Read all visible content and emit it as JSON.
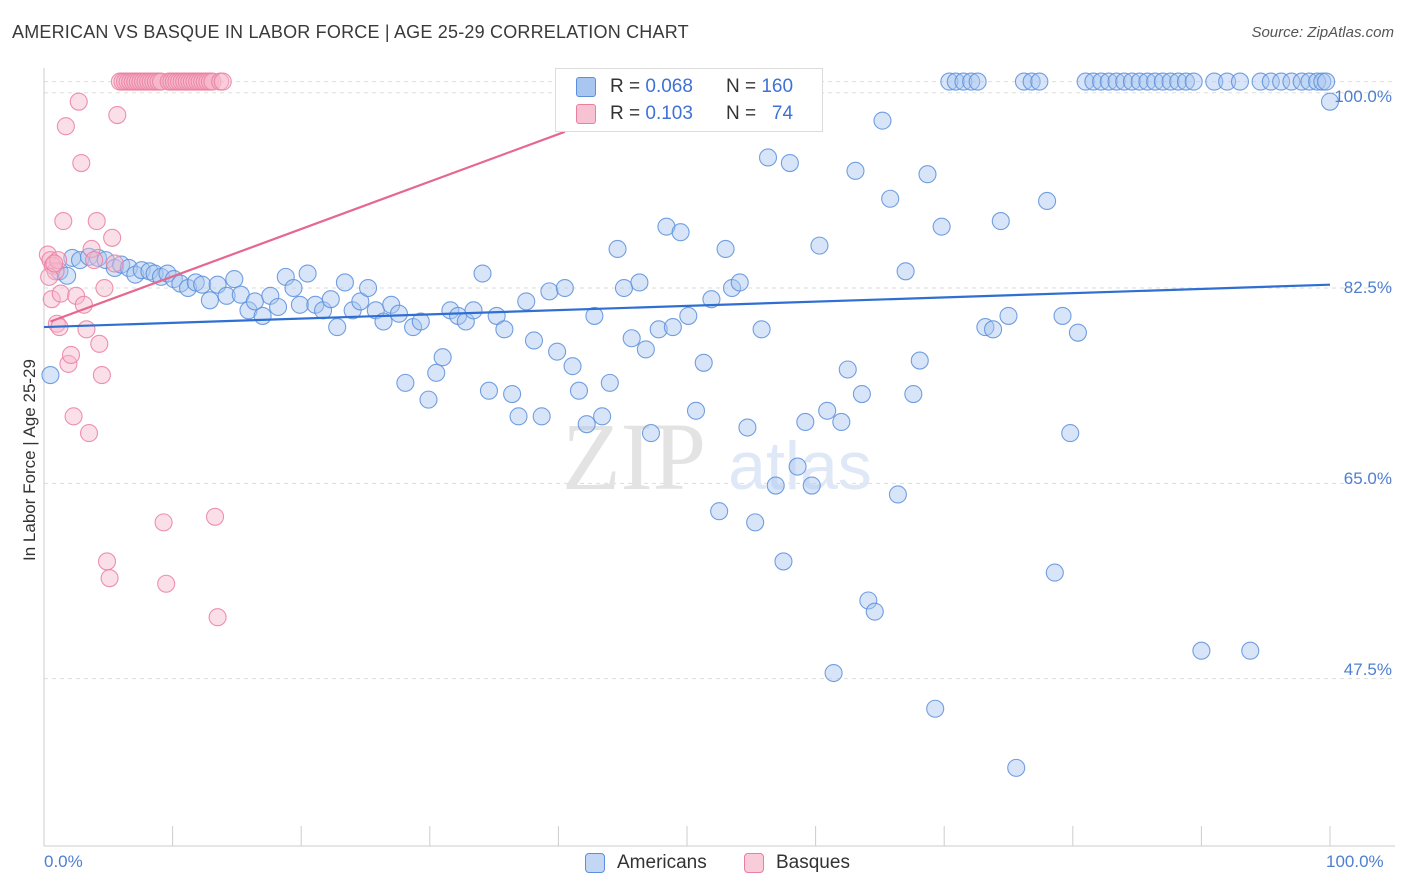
{
  "header": {
    "title": "AMERICAN VS BASQUE IN LABOR FORCE | AGE 25-29 CORRELATION CHART",
    "source": "Source: ZipAtlas.com"
  },
  "legend": {
    "americans": {
      "r_label": "R =",
      "r_value": "0.068",
      "n_label": "N =",
      "n_value": "160"
    },
    "basques": {
      "r_label": "R =",
      "r_value": "0.103",
      "n_label": "N =",
      "n_value": "74"
    }
  },
  "watermark": {
    "zip": "ZIP",
    "atlas": "atlas"
  },
  "colors": {
    "americans_fill": "#a9c6f0",
    "americans_stroke": "#5b8fdc",
    "americans_line": "#2f6fd1",
    "basques_fill": "#f7b7cb",
    "basques_stroke": "#ea7fa1",
    "basques_line": "#e5688f",
    "tick_text": "#4f7fd0",
    "grid": "#dddddd"
  },
  "chart_data": {
    "type": "scatter",
    "title": "AMERICAN VS BASQUE IN LABOR FORCE | AGE 25-29 CORRELATION CHART",
    "xlabel": "",
    "ylabel": "In Labor Force | Age 25-29",
    "xlim": [
      0,
      100
    ],
    "ylim": [
      32.5,
      101.5
    ],
    "x_tick_labels": [
      "0.0%",
      "100.0%"
    ],
    "y_ticks": [
      47.5,
      65.0,
      82.5,
      100.0
    ],
    "y_tick_labels": [
      "47.5%",
      "65.0%",
      "82.5%",
      "100.0%"
    ],
    "grid": true,
    "legend_position": "top-center",
    "series": [
      {
        "name": "Americans",
        "trend": [
          [
            0,
            79.0
          ],
          [
            100,
            82.8
          ]
        ],
        "points": [
          [
            0.5,
            74.7
          ],
          [
            1.2,
            84.0
          ],
          [
            1.8,
            83.6
          ],
          [
            2.2,
            85.2
          ],
          [
            2.8,
            85.0
          ],
          [
            3.5,
            85.3
          ],
          [
            4.2,
            85.2
          ],
          [
            4.8,
            85.0
          ],
          [
            5.5,
            84.3
          ],
          [
            6.0,
            84.6
          ],
          [
            6.6,
            84.3
          ],
          [
            7.1,
            83.7
          ],
          [
            7.6,
            84.1
          ],
          [
            8.2,
            84.0
          ],
          [
            8.6,
            83.8
          ],
          [
            9.1,
            83.5
          ],
          [
            9.6,
            83.8
          ],
          [
            10.1,
            83.3
          ],
          [
            10.6,
            82.9
          ],
          [
            11.2,
            82.5
          ],
          [
            11.8,
            83.0
          ],
          [
            12.3,
            82.8
          ],
          [
            12.9,
            81.4
          ],
          [
            13.5,
            82.8
          ],
          [
            14.2,
            81.8
          ],
          [
            14.8,
            83.3
          ],
          [
            15.3,
            81.9
          ],
          [
            15.9,
            80.5
          ],
          [
            16.4,
            81.3
          ],
          [
            17.0,
            80.0
          ],
          [
            17.6,
            81.8
          ],
          [
            18.2,
            80.8
          ],
          [
            18.8,
            83.5
          ],
          [
            19.4,
            82.5
          ],
          [
            19.9,
            81.0
          ],
          [
            20.5,
            83.8
          ],
          [
            21.1,
            81.0
          ],
          [
            21.7,
            80.5
          ],
          [
            22.3,
            81.5
          ],
          [
            22.8,
            79.0
          ],
          [
            23.4,
            83.0
          ],
          [
            24.0,
            80.5
          ],
          [
            24.6,
            81.3
          ],
          [
            25.2,
            82.5
          ],
          [
            25.8,
            80.5
          ],
          [
            26.4,
            79.5
          ],
          [
            27.0,
            81.0
          ],
          [
            27.6,
            80.2
          ],
          [
            28.1,
            74.0
          ],
          [
            28.7,
            79.0
          ],
          [
            29.3,
            79.5
          ],
          [
            29.9,
            72.5
          ],
          [
            30.5,
            74.9
          ],
          [
            31.0,
            76.3
          ],
          [
            31.6,
            80.5
          ],
          [
            32.2,
            80.0
          ],
          [
            32.8,
            79.5
          ],
          [
            33.4,
            80.5
          ],
          [
            34.1,
            83.8
          ],
          [
            34.6,
            73.3
          ],
          [
            35.2,
            80.0
          ],
          [
            35.8,
            78.8
          ],
          [
            36.4,
            73.0
          ],
          [
            36.9,
            71.0
          ],
          [
            37.5,
            81.3
          ],
          [
            38.1,
            77.8
          ],
          [
            38.7,
            71.0
          ],
          [
            39.3,
            82.2
          ],
          [
            39.9,
            76.8
          ],
          [
            40.5,
            82.5
          ],
          [
            41.1,
            75.5
          ],
          [
            41.6,
            73.3
          ],
          [
            42.2,
            70.3
          ],
          [
            42.8,
            80.0
          ],
          [
            43.4,
            71.0
          ],
          [
            44.0,
            74.0
          ],
          [
            44.6,
            86.0
          ],
          [
            45.1,
            82.5
          ],
          [
            45.7,
            78.0
          ],
          [
            46.3,
            83.0
          ],
          [
            46.8,
            77.0
          ],
          [
            47.2,
            69.5
          ],
          [
            47.8,
            78.8
          ],
          [
            48.4,
            88.0
          ],
          [
            48.9,
            79.0
          ],
          [
            49.5,
            87.5
          ],
          [
            50.1,
            80.0
          ],
          [
            50.7,
            71.5
          ],
          [
            51.3,
            75.8
          ],
          [
            51.9,
            81.5
          ],
          [
            52.5,
            62.5
          ],
          [
            53.0,
            86.0
          ],
          [
            53.5,
            82.5
          ],
          [
            54.1,
            83.0
          ],
          [
            54.7,
            70.0
          ],
          [
            55.3,
            61.5
          ],
          [
            55.8,
            78.8
          ],
          [
            56.3,
            94.2
          ],
          [
            56.9,
            64.8
          ],
          [
            57.5,
            58.0
          ],
          [
            58.0,
            93.7
          ],
          [
            58.6,
            66.5
          ],
          [
            59.2,
            70.5
          ],
          [
            59.7,
            64.8
          ],
          [
            60.3,
            86.3
          ],
          [
            60.9,
            71.5
          ],
          [
            61.4,
            48.0
          ],
          [
            62.0,
            70.5
          ],
          [
            62.5,
            75.2
          ],
          [
            63.1,
            93.0
          ],
          [
            63.6,
            73.0
          ],
          [
            64.1,
            54.5
          ],
          [
            64.6,
            53.5
          ],
          [
            65.2,
            97.5
          ],
          [
            65.8,
            90.5
          ],
          [
            66.4,
            64.0
          ],
          [
            67.0,
            84.0
          ],
          [
            67.6,
            73.0
          ],
          [
            68.1,
            76.0
          ],
          [
            68.7,
            92.7
          ],
          [
            69.3,
            44.8
          ],
          [
            69.8,
            88.0
          ],
          [
            70.4,
            101.0
          ],
          [
            70.9,
            101.0
          ],
          [
            71.5,
            101.0
          ],
          [
            72.1,
            101.0
          ],
          [
            72.6,
            101.0
          ],
          [
            73.2,
            79.0
          ],
          [
            73.8,
            78.8
          ],
          [
            74.4,
            88.5
          ],
          [
            75.0,
            80.0
          ],
          [
            75.6,
            39.5
          ],
          [
            76.2,
            101.0
          ],
          [
            76.8,
            101.0
          ],
          [
            77.4,
            101.0
          ],
          [
            78.0,
            90.3
          ],
          [
            78.6,
            57.0
          ],
          [
            79.2,
            80.0
          ],
          [
            79.8,
            69.5
          ],
          [
            80.4,
            78.5
          ],
          [
            81.0,
            101.0
          ],
          [
            81.6,
            101.0
          ],
          [
            82.2,
            101.0
          ],
          [
            82.8,
            101.0
          ],
          [
            83.4,
            101.0
          ],
          [
            84.0,
            101.0
          ],
          [
            84.6,
            101.0
          ],
          [
            85.2,
            101.0
          ],
          [
            85.8,
            101.0
          ],
          [
            86.4,
            101.0
          ],
          [
            87.0,
            101.0
          ],
          [
            87.6,
            101.0
          ],
          [
            88.2,
            101.0
          ],
          [
            88.8,
            101.0
          ],
          [
            89.4,
            101.0
          ],
          [
            90.0,
            50.0
          ],
          [
            91.0,
            101.0
          ],
          [
            92.0,
            101.0
          ],
          [
            93.0,
            101.0
          ],
          [
            93.8,
            50.0
          ],
          [
            94.6,
            101.0
          ],
          [
            95.4,
            101.0
          ],
          [
            96.2,
            101.0
          ],
          [
            97.0,
            101.0
          ],
          [
            97.8,
            101.0
          ],
          [
            98.4,
            101.0
          ],
          [
            99.0,
            101.0
          ],
          [
            99.4,
            101.0
          ],
          [
            99.7,
            101.0
          ],
          [
            100.0,
            99.2
          ]
        ]
      },
      {
        "name": "Basques",
        "trend": [
          [
            0.5,
            79.5
          ],
          [
            40.5,
            96.5
          ]
        ],
        "points": [
          [
            0.3,
            85.5
          ],
          [
            0.5,
            85.0
          ],
          [
            0.7,
            84.5
          ],
          [
            0.9,
            84.0
          ],
          [
            1.1,
            85.0
          ],
          [
            0.4,
            83.5
          ],
          [
            0.6,
            81.5
          ],
          [
            0.8,
            84.7
          ],
          [
            1.0,
            79.3
          ],
          [
            1.2,
            79.0
          ],
          [
            1.3,
            82.0
          ],
          [
            1.5,
            88.5
          ],
          [
            1.7,
            97.0
          ],
          [
            1.9,
            75.7
          ],
          [
            2.1,
            76.5
          ],
          [
            2.3,
            71.0
          ],
          [
            2.5,
            81.8
          ],
          [
            2.7,
            99.2
          ],
          [
            2.9,
            93.7
          ],
          [
            3.1,
            81.0
          ],
          [
            3.3,
            78.8
          ],
          [
            3.5,
            69.5
          ],
          [
            3.7,
            86.0
          ],
          [
            3.9,
            85.0
          ],
          [
            4.1,
            88.5
          ],
          [
            4.3,
            77.5
          ],
          [
            4.5,
            74.7
          ],
          [
            4.7,
            82.5
          ],
          [
            4.9,
            58.0
          ],
          [
            5.1,
            56.5
          ],
          [
            5.3,
            87.0
          ],
          [
            5.5,
            84.7
          ],
          [
            5.7,
            98.0
          ],
          [
            5.9,
            101.0
          ],
          [
            6.1,
            101.0
          ],
          [
            6.3,
            101.0
          ],
          [
            6.5,
            101.0
          ],
          [
            6.7,
            101.0
          ],
          [
            6.9,
            101.0
          ],
          [
            7.1,
            101.0
          ],
          [
            7.3,
            101.0
          ],
          [
            7.5,
            101.0
          ],
          [
            7.7,
            101.0
          ],
          [
            7.9,
            101.0
          ],
          [
            8.1,
            101.0
          ],
          [
            8.3,
            101.0
          ],
          [
            8.5,
            101.0
          ],
          [
            8.7,
            101.0
          ],
          [
            8.9,
            101.0
          ],
          [
            9.1,
            101.0
          ],
          [
            9.3,
            61.5
          ],
          [
            9.5,
            56.0
          ],
          [
            9.7,
            101.0
          ],
          [
            9.9,
            101.0
          ],
          [
            10.1,
            101.0
          ],
          [
            10.3,
            101.0
          ],
          [
            10.5,
            101.0
          ],
          [
            10.7,
            101.0
          ],
          [
            10.9,
            101.0
          ],
          [
            11.1,
            101.0
          ],
          [
            11.3,
            101.0
          ],
          [
            11.5,
            101.0
          ],
          [
            11.7,
            101.0
          ],
          [
            11.9,
            101.0
          ],
          [
            12.1,
            101.0
          ],
          [
            12.3,
            101.0
          ],
          [
            12.5,
            101.0
          ],
          [
            12.7,
            101.0
          ],
          [
            12.9,
            101.0
          ],
          [
            13.1,
            101.0
          ],
          [
            13.3,
            62.0
          ],
          [
            13.5,
            53.0
          ],
          [
            13.7,
            101.0
          ],
          [
            13.9,
            101.0
          ]
        ]
      }
    ]
  }
}
